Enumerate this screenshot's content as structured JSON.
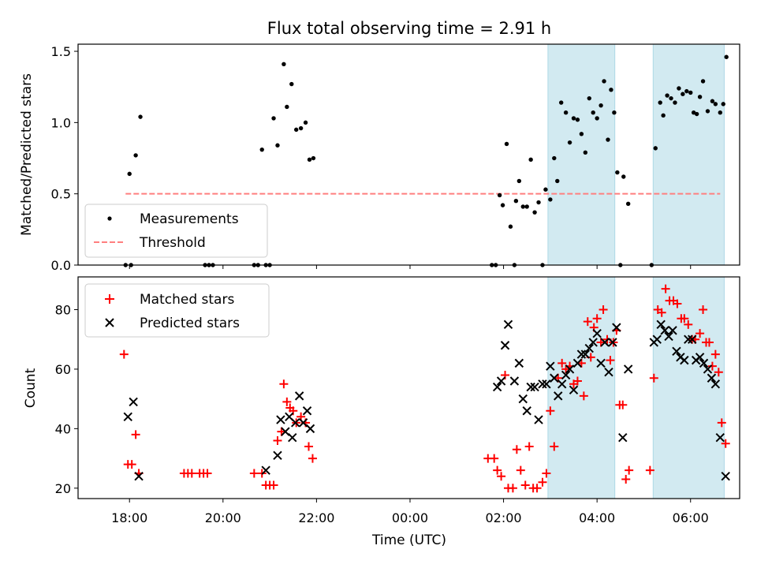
{
  "title": "Flux total observing time = 2.91 h",
  "colors": {
    "shade": "#add8e6",
    "threshold": "#ff7f7f",
    "matched": "#ff0000",
    "predicted": "#000000",
    "measurement": "#000000"
  },
  "chart_data": [
    {
      "type": "scatter",
      "ylabel": "Matched/Predicted stars",
      "ylim": [
        0,
        1.55
      ],
      "yticks": [
        0,
        0.5,
        1.0,
        1.5
      ],
      "ytick_labels": [
        "0.0",
        "0.5",
        "1.0",
        "1.5"
      ],
      "xlim_hours": [
        16.9,
        31.05
      ],
      "shaded_ranges": [
        [
          2.95,
          4.38
        ],
        [
          5.2,
          6.72
        ]
      ],
      "legend": {
        "placement": "lower left",
        "entries": [
          "Measurements",
          "Threshold"
        ]
      },
      "threshold": {
        "name": "Threshold",
        "value": 0.5,
        "x_range": [
          "17:55",
          "06:38"
        ],
        "color": "#ff7f7f",
        "style": "dashed"
      },
      "series": [
        {
          "name": "Measurements",
          "marker": "dot",
          "points": [
            [
              "17:55",
              0.0
            ],
            [
              "18:02",
              0.0
            ],
            [
              "18:00",
              0.64
            ],
            [
              "18:08",
              0.77
            ],
            [
              "18:14",
              1.04
            ],
            [
              "19:37",
              0.0
            ],
            [
              "19:42",
              0.0
            ],
            [
              "19:47",
              0.0
            ],
            [
              "20:40",
              0.0
            ],
            [
              "20:45",
              0.0
            ],
            [
              "20:55",
              0.0
            ],
            [
              "21:00",
              0.0
            ],
            [
              "20:50",
              0.81
            ],
            [
              "21:05",
              1.03
            ],
            [
              "21:10",
              0.84
            ],
            [
              "21:18",
              1.41
            ],
            [
              "21:22",
              1.11
            ],
            [
              "21:28",
              1.27
            ],
            [
              "21:34",
              0.95
            ],
            [
              "21:40",
              0.96
            ],
            [
              "21:46",
              1.0
            ],
            [
              "21:51",
              0.74
            ],
            [
              "21:56",
              0.75
            ],
            [
              "01:45",
              0.0
            ],
            [
              "01:50",
              0.0
            ],
            [
              "01:55",
              0.49
            ],
            [
              "01:59",
              0.42
            ],
            [
              "02:04",
              0.85
            ],
            [
              "02:09",
              0.27
            ],
            [
              "02:14",
              0.0
            ],
            [
              "02:16",
              0.45
            ],
            [
              "02:20",
              0.59
            ],
            [
              "02:25",
              0.41
            ],
            [
              "02:30",
              0.41
            ],
            [
              "02:35",
              0.74
            ],
            [
              "02:40",
              0.37
            ],
            [
              "02:45",
              0.44
            ],
            [
              "02:50",
              0.0
            ],
            [
              "02:54",
              0.53
            ],
            [
              "03:00",
              0.46
            ],
            [
              "03:05",
              0.75
            ],
            [
              "03:09",
              0.59
            ],
            [
              "03:14",
              1.14
            ],
            [
              "03:20",
              1.07
            ],
            [
              "03:25",
              0.86
            ],
            [
              "03:30",
              1.03
            ],
            [
              "03:35",
              1.02
            ],
            [
              "03:40",
              0.92
            ],
            [
              "03:45",
              0.79
            ],
            [
              "03:50",
              1.17
            ],
            [
              "03:55",
              1.07
            ],
            [
              "04:00",
              1.03
            ],
            [
              "04:05",
              1.12
            ],
            [
              "04:09",
              1.29
            ],
            [
              "04:14",
              0.88
            ],
            [
              "04:18",
              1.23
            ],
            [
              "04:22",
              1.07
            ],
            [
              "04:26",
              0.65
            ],
            [
              "04:30",
              0.0
            ],
            [
              "04:34",
              0.62
            ],
            [
              "04:40",
              0.43
            ],
            [
              "05:10",
              0.0
            ],
            [
              "05:15",
              0.82
            ],
            [
              "05:21",
              1.14
            ],
            [
              "05:25",
              1.05
            ],
            [
              "05:30",
              1.19
            ],
            [
              "05:35",
              1.17
            ],
            [
              "05:40",
              1.14
            ],
            [
              "05:45",
              1.24
            ],
            [
              "05:50",
              1.2
            ],
            [
              "05:55",
              1.22
            ],
            [
              "06:00",
              1.21
            ],
            [
              "06:04",
              1.07
            ],
            [
              "06:08",
              1.06
            ],
            [
              "06:12",
              1.18
            ],
            [
              "06:16",
              1.29
            ],
            [
              "06:22",
              1.08
            ],
            [
              "06:28",
              1.15
            ],
            [
              "06:32",
              1.13
            ],
            [
              "06:38",
              1.07
            ],
            [
              "06:42",
              1.13
            ],
            [
              "06:46",
              1.46
            ]
          ]
        }
      ]
    },
    {
      "type": "scatter",
      "ylabel": "Count",
      "xlabel": "Time (UTC)",
      "ylim": [
        16.5,
        91
      ],
      "yticks": [
        20,
        40,
        60,
        80
      ],
      "ytick_labels": [
        "20",
        "40",
        "60",
        "80"
      ],
      "xlim_hours": [
        16.9,
        31.05
      ],
      "xticks_hours": [
        18,
        20,
        22,
        24,
        26,
        28,
        30
      ],
      "xtick_labels": [
        "18:00",
        "20:00",
        "22:00",
        "00:00",
        "02:00",
        "04:00",
        "06:00"
      ],
      "shaded_ranges": [
        [
          2.95,
          4.38
        ],
        [
          5.2,
          6.72
        ]
      ],
      "legend": {
        "placement": "upper left",
        "entries": [
          "Matched stars",
          "Predicted stars"
        ]
      },
      "series": [
        {
          "name": "Matched stars",
          "marker": "plus",
          "points": [
            [
              "17:53",
              65
            ],
            [
              "17:58",
              28
            ],
            [
              "18:03",
              28
            ],
            [
              "18:08",
              38
            ],
            [
              "18:12",
              25
            ],
            [
              "19:10",
              25
            ],
            [
              "19:15",
              25
            ],
            [
              "19:20",
              25
            ],
            [
              "19:30",
              25
            ],
            [
              "19:35",
              25
            ],
            [
              "19:40",
              25
            ],
            [
              "20:40",
              25
            ],
            [
              "20:50",
              25
            ],
            [
              "20:55",
              21
            ],
            [
              "21:00",
              21
            ],
            [
              "21:05",
              21
            ],
            [
              "21:10",
              36
            ],
            [
              "21:15",
              39
            ],
            [
              "21:18",
              55
            ],
            [
              "21:22",
              49
            ],
            [
              "21:26",
              47
            ],
            [
              "21:30",
              46
            ],
            [
              "21:34",
              42
            ],
            [
              "21:40",
              44
            ],
            [
              "21:46",
              42
            ],
            [
              "21:50",
              34
            ],
            [
              "21:55",
              30
            ],
            [
              "01:40",
              30
            ],
            [
              "01:48",
              30
            ],
            [
              "01:52",
              26
            ],
            [
              "01:57",
              24
            ],
            [
              "02:02",
              58
            ],
            [
              "02:06",
              20
            ],
            [
              "02:12",
              20
            ],
            [
              "02:17",
              33
            ],
            [
              "02:22",
              26
            ],
            [
              "02:28",
              21
            ],
            [
              "02:33",
              34
            ],
            [
              "02:38",
              20
            ],
            [
              "02:43",
              20
            ],
            [
              "02:50",
              22
            ],
            [
              "02:55",
              25
            ],
            [
              "03:00",
              46
            ],
            [
              "03:05",
              34
            ],
            [
              "03:10",
              57
            ],
            [
              "03:15",
              62
            ],
            [
              "03:20",
              60
            ],
            [
              "03:25",
              61
            ],
            [
              "03:30",
              55
            ],
            [
              "03:35",
              56
            ],
            [
              "03:40",
              62
            ],
            [
              "03:43",
              51
            ],
            [
              "03:48",
              76
            ],
            [
              "03:52",
              64
            ],
            [
              "03:56",
              74
            ],
            [
              "04:00",
              77
            ],
            [
              "04:05",
              69
            ],
            [
              "04:08",
              80
            ],
            [
              "04:13",
              70
            ],
            [
              "04:17",
              63
            ],
            [
              "04:21",
              69
            ],
            [
              "04:25",
              73
            ],
            [
              "04:29",
              48
            ],
            [
              "04:33",
              48
            ],
            [
              "04:37",
              23
            ],
            [
              "04:41",
              26
            ],
            [
              "05:08",
              26
            ],
            [
              "05:13",
              57
            ],
            [
              "05:18",
              80
            ],
            [
              "05:23",
              79
            ],
            [
              "05:28",
              87
            ],
            [
              "05:33",
              83
            ],
            [
              "05:38",
              83
            ],
            [
              "05:43",
              82
            ],
            [
              "05:48",
              77
            ],
            [
              "05:52",
              77
            ],
            [
              "05:57",
              75
            ],
            [
              "06:02",
              70
            ],
            [
              "06:06",
              70
            ],
            [
              "06:12",
              72
            ],
            [
              "06:16",
              80
            ],
            [
              "06:20",
              69
            ],
            [
              "06:24",
              69
            ],
            [
              "06:28",
              61
            ],
            [
              "06:32",
              65
            ],
            [
              "06:36",
              59
            ],
            [
              "06:40",
              42
            ],
            [
              "06:45",
              35
            ]
          ]
        },
        {
          "name": "Predicted stars",
          "marker": "x",
          "points": [
            [
              "17:58",
              44
            ],
            [
              "18:05",
              49
            ],
            [
              "18:12",
              24
            ],
            [
              "20:55",
              26
            ],
            [
              "21:10",
              31
            ],
            [
              "21:14",
              43
            ],
            [
              "21:20",
              39
            ],
            [
              "21:25",
              44
            ],
            [
              "21:29",
              37
            ],
            [
              "21:33",
              42
            ],
            [
              "21:38",
              51
            ],
            [
              "21:43",
              42
            ],
            [
              "21:48",
              46
            ],
            [
              "21:52",
              40
            ],
            [
              "01:52",
              54
            ],
            [
              "01:57",
              56
            ],
            [
              "02:02",
              68
            ],
            [
              "02:06",
              75
            ],
            [
              "02:14",
              56
            ],
            [
              "02:20",
              62
            ],
            [
              "02:25",
              50
            ],
            [
              "02:30",
              46
            ],
            [
              "02:35",
              54
            ],
            [
              "02:40",
              54
            ],
            [
              "02:45",
              43
            ],
            [
              "02:50",
              55
            ],
            [
              "02:55",
              55
            ],
            [
              "03:00",
              61
            ],
            [
              "03:05",
              57
            ],
            [
              "03:10",
              51
            ],
            [
              "03:15",
              55
            ],
            [
              "03:20",
              58
            ],
            [
              "03:25",
              60
            ],
            [
              "03:30",
              53
            ],
            [
              "03:35",
              62
            ],
            [
              "03:40",
              65
            ],
            [
              "03:45",
              65
            ],
            [
              "03:50",
              67
            ],
            [
              "03:55",
              69
            ],
            [
              "04:00",
              72
            ],
            [
              "04:05",
              62
            ],
            [
              "04:10",
              69
            ],
            [
              "04:15",
              59
            ],
            [
              "04:20",
              69
            ],
            [
              "04:25",
              74
            ],
            [
              "04:33",
              37
            ],
            [
              "04:40",
              60
            ],
            [
              "05:13",
              69
            ],
            [
              "05:17",
              70
            ],
            [
              "05:22",
              75
            ],
            [
              "05:27",
              73
            ],
            [
              "05:32",
              71
            ],
            [
              "05:37",
              73
            ],
            [
              "05:42",
              66
            ],
            [
              "05:47",
              64
            ],
            [
              "05:52",
              63
            ],
            [
              "05:57",
              70
            ],
            [
              "06:02",
              70
            ],
            [
              "06:07",
              63
            ],
            [
              "06:12",
              64
            ],
            [
              "06:17",
              62
            ],
            [
              "06:22",
              60
            ],
            [
              "06:27",
              57
            ],
            [
              "06:32",
              55
            ],
            [
              "06:38",
              37
            ],
            [
              "06:45",
              24
            ]
          ]
        }
      ]
    }
  ]
}
